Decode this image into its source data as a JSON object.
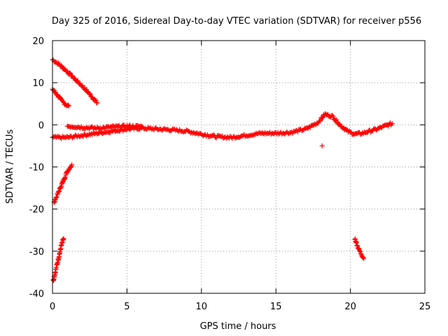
{
  "chart_data": {
    "type": "scatter",
    "title": "Day 325 of 2016, Sidereal Day-to-day VTEC variation (SDTVAR) for receiver p556",
    "xlabel": "GPS time / hours",
    "ylabel": "SDTVAR / TECUs",
    "xlim": [
      0,
      25
    ],
    "ylim": [
      -40,
      20
    ],
    "x_ticks": [
      0,
      5,
      10,
      15,
      20,
      25
    ],
    "y_ticks": [
      -40,
      -30,
      -20,
      -10,
      0,
      10,
      20
    ],
    "x_tick_labels": [
      "0",
      "5",
      "10",
      "15",
      "20",
      "25"
    ],
    "y_tick_labels": [
      "-40",
      "-30",
      "-20",
      "-10",
      "0",
      "10",
      "20"
    ],
    "grid": true,
    "grid_style": "dotted",
    "marker": "plus",
    "series_color": "#ff0000",
    "series": [
      {
        "values": [
          {
            "x": 0.0,
            "y": 15.5
          },
          {
            "x": 0.5,
            "y": 14.2
          },
          {
            "x": 1.0,
            "y": 12.6
          },
          {
            "x": 1.5,
            "y": 10.9
          },
          {
            "x": 2.0,
            "y": 9.2
          },
          {
            "x": 2.5,
            "y": 7.3
          },
          {
            "x": 3.0,
            "y": 5.2
          }
        ]
      },
      {
        "values": [
          {
            "x": 0.0,
            "y": 8.5
          },
          {
            "x": 0.3,
            "y": 7.2
          },
          {
            "x": 0.6,
            "y": 5.8
          },
          {
            "x": 0.9,
            "y": 4.8
          },
          {
            "x": 1.1,
            "y": 4.5
          }
        ]
      },
      {
        "values": [
          {
            "x": 0.1,
            "y": -18.5
          },
          {
            "x": 0.4,
            "y": -16.0
          },
          {
            "x": 0.7,
            "y": -13.5
          },
          {
            "x": 1.0,
            "y": -11.0
          },
          {
            "x": 1.3,
            "y": -9.5
          }
        ]
      },
      {
        "values": [
          {
            "x": 0.05,
            "y": -37.0
          },
          {
            "x": 0.25,
            "y": -34.0
          },
          {
            "x": 0.45,
            "y": -31.0
          },
          {
            "x": 0.6,
            "y": -28.5
          },
          {
            "x": 0.75,
            "y": -27.0
          }
        ]
      },
      {
        "values": [
          {
            "x": 0.0,
            "y": -3.0
          },
          {
            "x": 1.0,
            "y": -3.0
          },
          {
            "x": 2.0,
            "y": -2.5
          },
          {
            "x": 3.0,
            "y": -2.0
          },
          {
            "x": 4.0,
            "y": -1.5
          },
          {
            "x": 5.0,
            "y": -1.0
          },
          {
            "x": 6.0,
            "y": -0.8
          },
          {
            "x": 7.0,
            "y": -1.0
          },
          {
            "x": 8.0,
            "y": -1.2
          },
          {
            "x": 9.0,
            "y": -1.5
          },
          {
            "x": 10.0,
            "y": -2.2
          },
          {
            "x": 11.0,
            "y": -2.8
          },
          {
            "x": 12.0,
            "y": -3.0
          },
          {
            "x": 13.0,
            "y": -2.5
          },
          {
            "x": 14.0,
            "y": -2.0
          },
          {
            "x": 15.0,
            "y": -2.0
          },
          {
            "x": 16.0,
            "y": -1.8
          },
          {
            "x": 17.0,
            "y": -1.0
          },
          {
            "x": 17.8,
            "y": 0.5
          },
          {
            "x": 18.3,
            "y": 2.5
          },
          {
            "x": 18.8,
            "y": 2.0
          },
          {
            "x": 19.3,
            "y": 0.0
          },
          {
            "x": 19.8,
            "y": -1.5
          },
          {
            "x": 20.3,
            "y": -2.2
          },
          {
            "x": 20.8,
            "y": -2.0
          },
          {
            "x": 21.3,
            "y": -1.5
          },
          {
            "x": 21.8,
            "y": -1.0
          },
          {
            "x": 22.3,
            "y": -0.3
          },
          {
            "x": 22.8,
            "y": 0.3
          }
        ]
      },
      {
        "values": [
          {
            "x": 1.0,
            "y": -0.3
          },
          {
            "x": 2.0,
            "y": -0.6
          },
          {
            "x": 3.0,
            "y": -0.8
          },
          {
            "x": 4.0,
            "y": -0.5
          },
          {
            "x": 5.0,
            "y": -0.3
          },
          {
            "x": 6.0,
            "y": -0.4
          }
        ]
      },
      {
        "values": [
          {
            "x": 18.1,
            "y": -5.0
          }
        ]
      },
      {
        "values": [
          {
            "x": 20.3,
            "y": -27.0
          },
          {
            "x": 20.5,
            "y": -29.0
          },
          {
            "x": 20.7,
            "y": -30.5
          },
          {
            "x": 20.9,
            "y": -31.7
          }
        ]
      }
    ]
  }
}
